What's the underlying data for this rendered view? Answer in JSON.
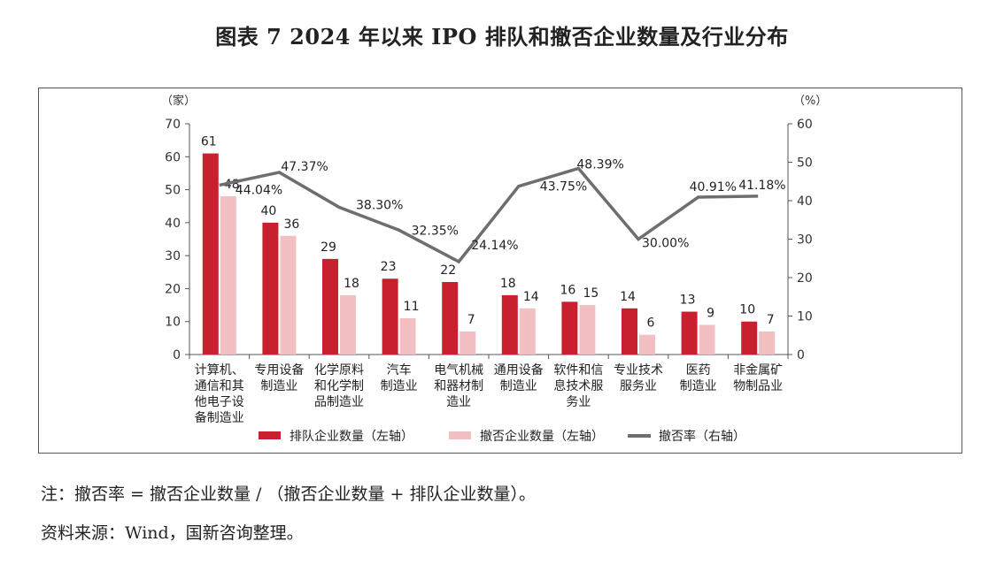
{
  "title": "图表 7  2024 年以来 IPO 排队和撤否企业数量及行业分布",
  "notes": {
    "formula": "注：撤否率 = 撤否企业数量 / （撤否企业数量 + 排队企业数量）。",
    "source": "资料来源：Wind，国新咨询整理。"
  },
  "colors": {
    "queue": "#c8202f",
    "withdraw": "#f2c0c3",
    "rate": "#6e6e70",
    "axis": "#555555"
  },
  "chart_data": {
    "type": "bar",
    "categories": [
      [
        "计算机、",
        "通信和其",
        "他电子设",
        "备制造业"
      ],
      [
        "专用设备",
        "制造业"
      ],
      [
        "化学原料",
        "和化学制",
        "品制造业"
      ],
      [
        "汽车",
        "制造业"
      ],
      [
        "电气机械",
        "和器材制",
        "造业"
      ],
      [
        "通用设备",
        "制造业"
      ],
      [
        "软件和信",
        "息技术服",
        "务业"
      ],
      [
        "专业技术",
        "服务业"
      ],
      [
        "医药",
        "制造业"
      ],
      [
        "非金属矿",
        "物制品业"
      ]
    ],
    "left_axis": {
      "unit": "（家）",
      "min": 0,
      "max": 70,
      "ticks": [
        0,
        10,
        20,
        30,
        40,
        50,
        60,
        70
      ]
    },
    "right_axis": {
      "unit": "（%）",
      "min": 0,
      "max": 60,
      "ticks": [
        0,
        10,
        20,
        30,
        40,
        50,
        60
      ]
    },
    "series": [
      {
        "name": "排队企业数量（左轴）",
        "type": "bar",
        "axis": "left",
        "values": [
          61,
          40,
          29,
          23,
          22,
          18,
          16,
          14,
          13,
          10
        ],
        "labels": [
          "61",
          "40",
          "29",
          "23",
          "22",
          "18",
          "16",
          "14",
          "13",
          "10"
        ]
      },
      {
        "name": "撤否企业数量（左轴）",
        "type": "bar",
        "axis": "left",
        "values": [
          48,
          36,
          18,
          11,
          7,
          14,
          15,
          6,
          9,
          7
        ],
        "labels": [
          "48",
          "36",
          "18",
          "11",
          "7",
          "14",
          "15",
          "6",
          "9",
          "7"
        ]
      },
      {
        "name": "撤否率（右轴）",
        "type": "line",
        "axis": "right",
        "values": [
          44.04,
          47.37,
          38.3,
          32.35,
          24.14,
          43.75,
          48.39,
          30.0,
          40.91,
          41.18
        ],
        "labels": [
          "44.04%",
          "47.37%",
          "38.30%",
          "32.35%",
          "24.14%",
          "43.75%",
          "48.39%",
          "30.00%",
          "40.91%",
          "41.18%"
        ]
      }
    ],
    "legend": "bottom",
    "grid": false
  }
}
